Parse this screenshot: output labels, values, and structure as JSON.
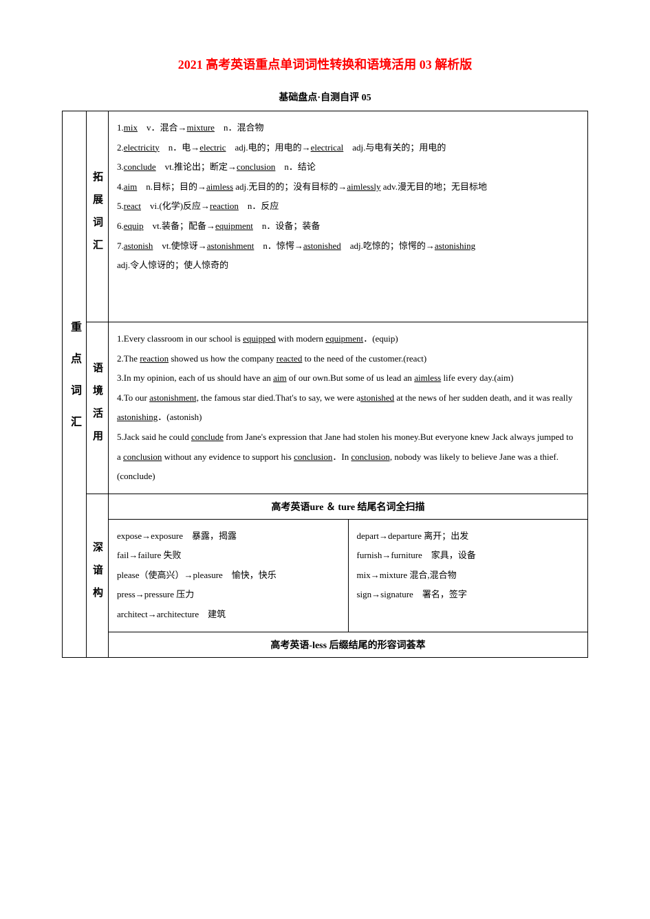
{
  "title": "2021 高考英语重点单词词性转换和语境活用 03 解析版",
  "subtitle": "基础盘点·自测自评 05",
  "leftLabel": "重点词汇",
  "row1Label": "拓展词汇",
  "row2Label": "语境活用",
  "row3Label": "深谙构",
  "vocab": {
    "line1_a": "1.",
    "line1_b": "mix",
    "line1_c": "　v．混合→",
    "line1_d": "mixture",
    "line1_e": "　n．混合物",
    "line2_a": "2.",
    "line2_b": "electricity",
    "line2_c": "　n．电→",
    "line2_d": "electric",
    "line2_e": "　adj.电的；用电的→",
    "line2_f": "electrical",
    "line2_g": "　adj.与电有关的；用电的",
    "line3_a": "3.",
    "line3_b": "conclude",
    "line3_c": "　vt.推论出；断定→",
    "line3_d": "conclusion",
    "line3_e": "　n．结论",
    "line4_a": "4.",
    "line4_b": "aim",
    "line4_c": "　n.目标；目的→",
    "line4_d": "aimless",
    "line4_e": " adj.无目的的；没有目标的→",
    "line4_f": "aimlessly",
    "line4_g": " adv.漫无目的地；无目标地",
    "line5_a": "5.",
    "line5_b": "react",
    "line5_c": "　vi.(化学)反应→",
    "line5_d": "reaction",
    "line5_e": "　n．反应",
    "line6_a": "6.",
    "line6_b": "equip",
    "line6_c": "　vt.装备；配备→",
    "line6_d": "equipment",
    "line6_e": "　n．设备；装备",
    "line7_a": "7.",
    "line7_b": "astonish",
    "line7_c": "　vt.使惊讶→",
    "line7_d": "astonishment",
    "line7_e": "　n．惊愕→",
    "line7_f": "astonished",
    "line7_g": "　adj.吃惊的；惊愕的→",
    "line7_h": "astonishing",
    "line7_i": "adj.令人惊讶的；使人惊奇的"
  },
  "usage": {
    "s1_a": "1.Every classroom in our school is ",
    "s1_b": "equipped",
    "s1_c": " with modern ",
    "s1_d": "equipment",
    "s1_e": "．(equip)",
    "s2_a": "2.The ",
    "s2_b": "reaction",
    "s2_c": " showed us how the company ",
    "s2_d": "reacted",
    "s2_e": " to the need of the customer.(react)",
    "s3_a": "3.In my opinion, each of us should have an ",
    "s3_b": "aim",
    "s3_c": " of our own.But some of us lead an ",
    "s3_d": "aimless",
    "s3_e": " life every day.(aim)",
    "s4_a": "4.To our ",
    "s4_b": "astonishment,",
    "s4_c": " the famous star died.That's to say, we were a",
    "s4_d": "stonished",
    "s4_e": " at the news of her sudden death, and it was really ",
    "s4_f": "astonishing",
    "s4_g": "．(astonish)",
    "s5_a": "5.Jack said he could ",
    "s5_b": "conclude",
    "s5_c": " from Jane's expression that Jane had stolen his money.But everyone knew Jack always jumped to a ",
    "s5_d": "conclusion",
    "s5_e": " without any evidence to support his ",
    "s5_f": "conclusion",
    "s5_g": "．In ",
    "s5_h": "conclusion,",
    "s5_i": " nobody was likely to believe Jane was a thief.(conclude)"
  },
  "header1": "高考英语ure ＆ ture 结尾名词全扫描",
  "header2": "高考英语-less 后缀结尾的形容词荟萃",
  "left": {
    "l1": "expose→exposure　暴露，揭露",
    "l2": "fail→failure 失败",
    "l3": "please（使高兴）→pleasure　愉快，快乐",
    "l4": "press→pressure 压力",
    "l5": "architect→architecture　建筑"
  },
  "right": {
    "r1": "depart→departure 离开；出发",
    "r2": "furnish→furniture　家具，设备",
    "r3": "mix→mixture 混合,混合物",
    "r4": "sign→signature　署名，签字"
  }
}
